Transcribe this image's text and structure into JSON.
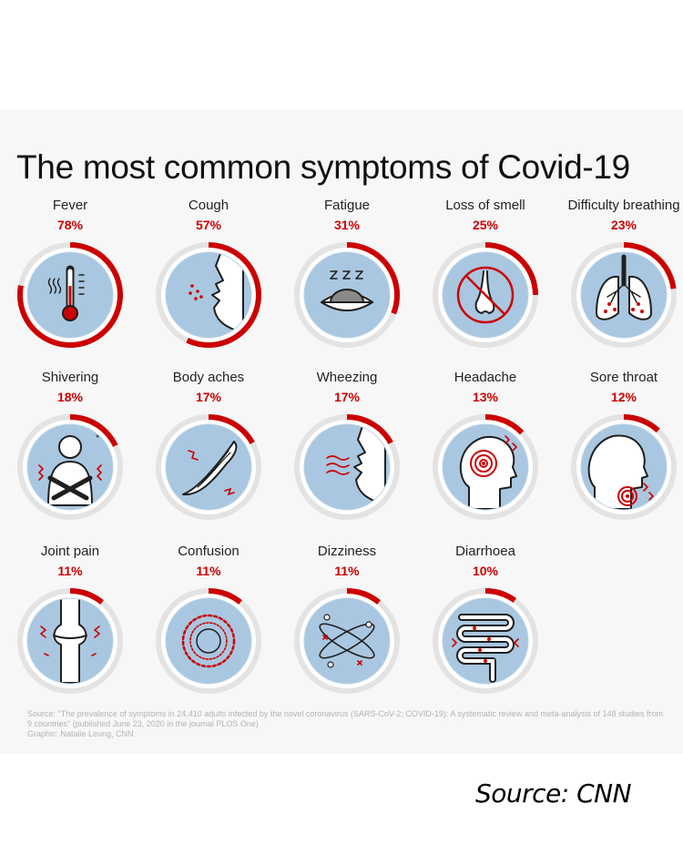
{
  "chart_data": {
    "type": "donut-grid",
    "title": "The most common symptoms of Covid-19",
    "unit": "%",
    "symptoms": [
      {
        "name": "Fever",
        "value": 78,
        "icon": "thermometer-icon"
      },
      {
        "name": "Cough",
        "value": 57,
        "icon": "cough-face-icon"
      },
      {
        "name": "Fatigue",
        "value": 31,
        "icon": "sleepy-eye-icon"
      },
      {
        "name": "Loss of smell",
        "value": 25,
        "icon": "crossed-nose-icon"
      },
      {
        "name": "Difficulty breathing",
        "value": 23,
        "icon": "lungs-icon"
      },
      {
        "name": "Shivering",
        "value": 18,
        "icon": "shivering-person-icon"
      },
      {
        "name": "Body aches",
        "value": 17,
        "icon": "muscle-icon"
      },
      {
        "name": "Wheezing",
        "value": 17,
        "icon": "wheezing-face-icon"
      },
      {
        "name": "Headache",
        "value": 13,
        "icon": "headache-head-icon"
      },
      {
        "name": "Sore throat",
        "value": 12,
        "icon": "sore-throat-icon"
      },
      {
        "name": "Joint pain",
        "value": 11,
        "icon": "knee-joint-icon"
      },
      {
        "name": "Confusion",
        "value": 11,
        "icon": "confusion-spiral-icon"
      },
      {
        "name": "Dizziness",
        "value": 11,
        "icon": "dizziness-orbit-icon"
      },
      {
        "name": "Diarrhoea",
        "value": 10,
        "icon": "intestines-icon"
      }
    ],
    "source_note": "Source: \"The prevalence of symptoms in 24,410 adults infected by the novel coronavirus (SARS-CoV-2; COVID-19): A systematic review and meta-analysis of 148 studies from 9 countries\" (published June 23, 2020 in the journal PLOS One)",
    "credit": "Graphic: Natalie Leung, CNN"
  },
  "colors": {
    "accent": "#cc0000",
    "ring_track": "#e3e3e3",
    "icon_fill": "#a9c7e0",
    "icon_line": "#1f1f1f"
  },
  "footer": {
    "source_label": "Source: CNN"
  }
}
